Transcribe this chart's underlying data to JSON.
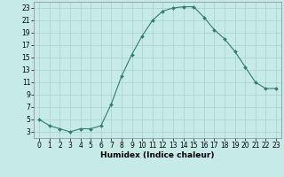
{
  "x": [
    0,
    1,
    2,
    3,
    4,
    5,
    6,
    7,
    8,
    9,
    10,
    11,
    12,
    13,
    14,
    15,
    16,
    17,
    18,
    19,
    20,
    21,
    22,
    23
  ],
  "y": [
    5,
    4,
    3.5,
    3,
    3.5,
    3.5,
    4,
    7.5,
    12,
    15.5,
    18.5,
    21,
    22.5,
    23,
    23.2,
    23.2,
    21.5,
    19.5,
    18,
    16,
    13.5,
    11,
    10,
    10
  ],
  "line_color": "#2E7D6E",
  "marker": "D",
  "marker_size": 2.0,
  "bg_color": "#C5EAE7",
  "grid_color": "#AACFCC",
  "xlabel": "Humidex (Indice chaleur)",
  "xlim": [
    -0.5,
    23.5
  ],
  "ylim": [
    2,
    24
  ],
  "yticks": [
    3,
    5,
    7,
    9,
    11,
    13,
    15,
    17,
    19,
    21,
    23
  ],
  "xticks": [
    0,
    1,
    2,
    3,
    4,
    5,
    6,
    7,
    8,
    9,
    10,
    11,
    12,
    13,
    14,
    15,
    16,
    17,
    18,
    19,
    20,
    21,
    22,
    23
  ],
  "tick_fontsize": 5.5,
  "xlabel_fontsize": 6.5
}
